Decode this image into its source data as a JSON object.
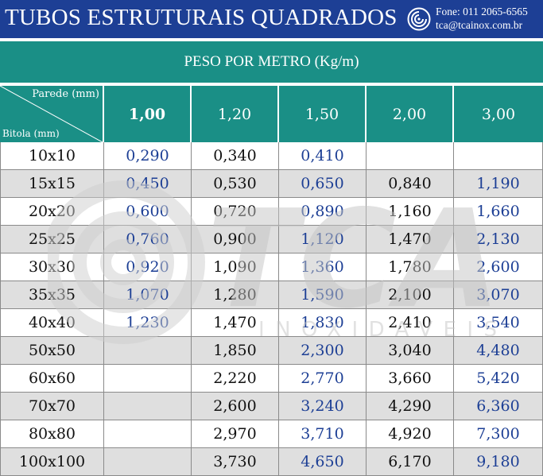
{
  "header": {
    "title": "TUBOS ESTRUTURAIS QUADRADOS",
    "phone": "Fone: 011 2065-6565",
    "email": "tca@tcainox.com.br"
  },
  "subheader": "PESO POR METRO (Kg/m)",
  "corner": {
    "top_label": "Parede (mm)",
    "bottom_label": "Bitola (mm)"
  },
  "columns": [
    "1,00",
    "1,20",
    "1,50",
    "2,00",
    "3,00"
  ],
  "rows": [
    {
      "bitola": "10x10",
      "values": [
        "0,290",
        "0,340",
        "0,410",
        "",
        ""
      ]
    },
    {
      "bitola": "15x15",
      "values": [
        "0,450",
        "0,530",
        "0,650",
        "0,840",
        "1,190"
      ]
    },
    {
      "bitola": "20x20",
      "values": [
        "0,600",
        "0,720",
        "0,890",
        "1,160",
        "1,660"
      ]
    },
    {
      "bitola": "25x25",
      "values": [
        "0,760",
        "0,900",
        "1,120",
        "1,470",
        "2,130"
      ]
    },
    {
      "bitola": "30x30",
      "values": [
        "0,920",
        "1,090",
        "1,360",
        "1,780",
        "2,600"
      ]
    },
    {
      "bitola": "35x35",
      "values": [
        "1,070",
        "1,280",
        "1,590",
        "2,100",
        "3,070"
      ]
    },
    {
      "bitola": "40x40",
      "values": [
        "1,230",
        "1,470",
        "1,830",
        "2,410",
        "3,540"
      ]
    },
    {
      "bitola": "50x50",
      "values": [
        "",
        "1,850",
        "2,300",
        "3,040",
        "4,480"
      ]
    },
    {
      "bitola": "60x60",
      "values": [
        "",
        "2,220",
        "2,770",
        "3,660",
        "5,420"
      ]
    },
    {
      "bitola": "70x70",
      "values": [
        "",
        "2,600",
        "3,240",
        "4,290",
        "6,360"
      ]
    },
    {
      "bitola": "80x80",
      "values": [
        "",
        "2,970",
        "3,710",
        "4,920",
        "7,300"
      ]
    },
    {
      "bitola": "100x100",
      "values": [
        "",
        "3,730",
        "4,650",
        "6,170",
        "9,180"
      ]
    }
  ],
  "watermark": {
    "brand": "TCA",
    "subtitle": "INOXIDAVEIS"
  },
  "colors": {
    "header_blue": "#1d3f95",
    "teal": "#1a8f86",
    "value_blue": "#1d3f95",
    "row_alt": "#d8d8d8"
  },
  "icons": {
    "logo": "tca-swirl-logo-icon"
  }
}
